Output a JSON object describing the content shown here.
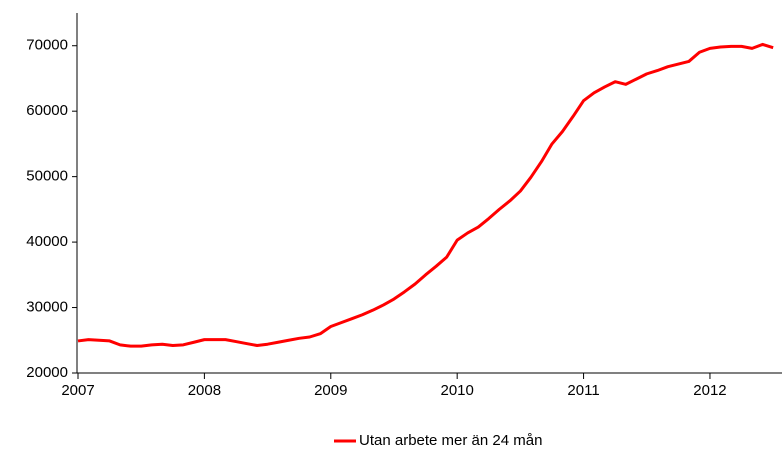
{
  "chart_data": {
    "type": "line",
    "x": [
      2007,
      2007.083,
      2007.167,
      2007.25,
      2007.333,
      2007.417,
      2007.5,
      2007.583,
      2007.667,
      2007.75,
      2007.833,
      2007.917,
      2008,
      2008.083,
      2008.167,
      2008.25,
      2008.333,
      2008.417,
      2008.5,
      2008.583,
      2008.667,
      2008.75,
      2008.833,
      2008.917,
      2009,
      2009.083,
      2009.167,
      2009.25,
      2009.333,
      2009.417,
      2009.5,
      2009.583,
      2009.667,
      2009.75,
      2009.833,
      2009.917,
      2010,
      2010.083,
      2010.167,
      2010.25,
      2010.333,
      2010.417,
      2010.5,
      2010.583,
      2010.667,
      2010.75,
      2010.833,
      2010.917,
      2011,
      2011.083,
      2011.167,
      2011.25,
      2011.333,
      2011.417,
      2011.5,
      2011.583,
      2011.667,
      2011.75,
      2011.833,
      2011.917,
      2012,
      2012.083,
      2012.167,
      2012.25,
      2012.333,
      2012.417,
      2012.5
    ],
    "series": [
      {
        "name": "Utan arbete mer än 24 mån",
        "color": "#ff0000",
        "values": [
          24900,
          25100,
          25000,
          24900,
          24300,
          24100,
          24100,
          24300,
          24400,
          24200,
          24300,
          24700,
          25100,
          25100,
          25100,
          24800,
          24500,
          24200,
          24400,
          24700,
          25000,
          25300,
          25500,
          26000,
          27100,
          27700,
          28300,
          28900,
          29600,
          30400,
          31300,
          32400,
          33600,
          35000,
          36300,
          37700,
          40300,
          41400,
          42300,
          43600,
          45000,
          46300,
          47800,
          49900,
          52300,
          55000,
          56900,
          59200,
          61600,
          62800,
          63700,
          64500,
          64100,
          64900,
          65700,
          66200,
          66800,
          67200,
          67600,
          69000,
          69600,
          69800,
          69900,
          69900,
          69600,
          70200,
          69700
        ]
      }
    ],
    "xlim": [
      2007,
      2012.57
    ],
    "xticks": [
      2007,
      2008,
      2009,
      2010,
      2011,
      2012
    ],
    "ylim": [
      20000,
      75000
    ],
    "yticks": [
      20000,
      30000,
      40000,
      50000,
      60000,
      70000
    ],
    "legend": "bottom"
  }
}
